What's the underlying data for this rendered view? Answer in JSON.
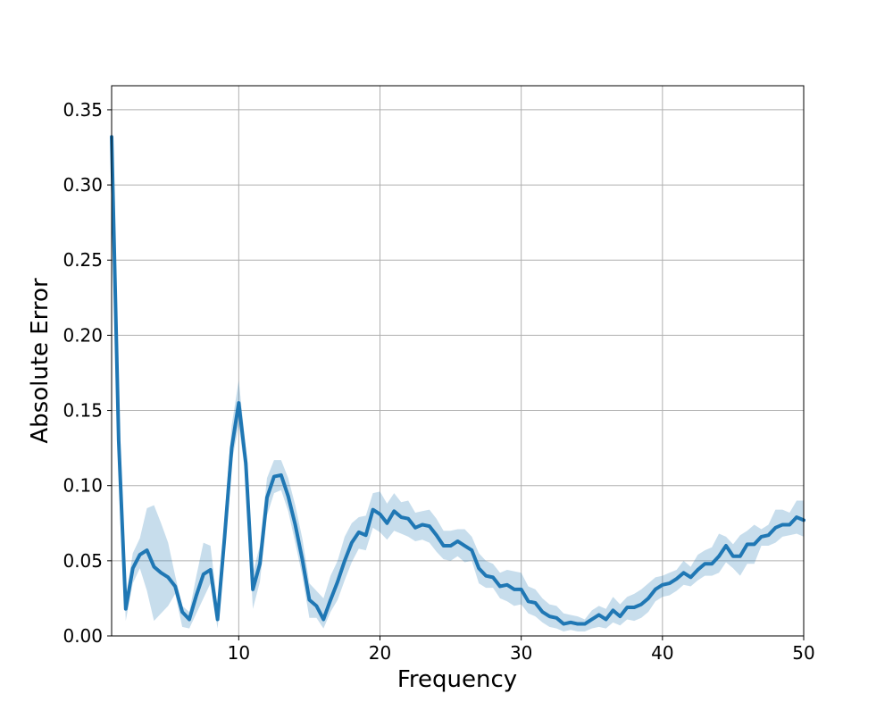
{
  "chart_data": {
    "type": "line",
    "xlabel": "Frequency",
    "ylabel": "Absolute Error",
    "xlim": [
      1,
      50
    ],
    "ylim": [
      0,
      0.366
    ],
    "xticks": [
      10,
      20,
      30,
      40,
      50
    ],
    "xtick_labels": [
      "10",
      "20",
      "30",
      "40",
      "50"
    ],
    "yticks": [
      0.0,
      0.05,
      0.1,
      0.15,
      0.2,
      0.25,
      0.3,
      0.35
    ],
    "ytick_labels": [
      "0.00",
      "0.05",
      "0.10",
      "0.15",
      "0.20",
      "0.25",
      "0.30",
      "0.35"
    ],
    "grid": true,
    "legend": false,
    "line_color": "#1f77b4",
    "band_color": "#1f77b4",
    "series": [
      {
        "x": [
          1.0,
          1.5,
          2.0,
          2.5,
          3.0,
          3.5,
          4.0,
          4.5,
          5.0,
          5.5,
          6.0,
          6.5,
          7.0,
          7.5,
          8.0,
          8.5,
          9.0,
          9.5,
          10.0,
          10.5,
          11.0,
          11.5,
          12.0,
          12.5,
          13.0,
          13.5,
          14.0,
          14.5,
          15.0,
          15.5,
          16.0,
          16.5,
          17.0,
          17.5,
          18.0,
          18.5,
          19.0,
          19.5,
          20.0,
          20.5,
          21.0,
          21.5,
          22.0,
          22.5,
          23.0,
          23.5,
          24.0,
          24.5,
          25.0,
          25.5,
          26.0,
          26.5,
          27.0,
          27.5,
          28.0,
          28.5,
          29.0,
          29.5,
          30.0,
          30.5,
          31.0,
          31.5,
          32.0,
          32.5,
          33.0,
          33.5,
          34.0,
          34.5,
          35.0,
          35.5,
          36.0,
          36.5,
          37.0,
          37.5,
          38.0,
          38.5,
          39.0,
          39.5,
          40.0,
          40.5,
          41.0,
          41.5,
          42.0,
          42.5,
          43.0,
          43.5,
          44.0,
          44.5,
          45.0,
          45.5,
          46.0,
          46.5,
          47.0,
          47.5,
          48.0,
          48.5,
          49.0,
          49.5,
          50.0
        ],
        "y": [
          0.332,
          0.13,
          0.018,
          0.045,
          0.054,
          0.057,
          0.046,
          0.042,
          0.039,
          0.033,
          0.016,
          0.011,
          0.027,
          0.041,
          0.044,
          0.011,
          0.066,
          0.125,
          0.155,
          0.115,
          0.031,
          0.048,
          0.092,
          0.106,
          0.107,
          0.093,
          0.074,
          0.051,
          0.024,
          0.02,
          0.011,
          0.024,
          0.036,
          0.05,
          0.062,
          0.069,
          0.067,
          0.084,
          0.081,
          0.075,
          0.083,
          0.079,
          0.078,
          0.072,
          0.074,
          0.073,
          0.067,
          0.06,
          0.06,
          0.063,
          0.06,
          0.057,
          0.045,
          0.04,
          0.039,
          0.033,
          0.034,
          0.031,
          0.031,
          0.023,
          0.022,
          0.016,
          0.013,
          0.012,
          0.008,
          0.009,
          0.008,
          0.008,
          0.011,
          0.014,
          0.011,
          0.017,
          0.013,
          0.019,
          0.019,
          0.021,
          0.025,
          0.031,
          0.034,
          0.035,
          0.038,
          0.042,
          0.039,
          0.044,
          0.048,
          0.048,
          0.053,
          0.06,
          0.053,
          0.053,
          0.061,
          0.061,
          0.066,
          0.067,
          0.072,
          0.074,
          0.074,
          0.079,
          0.077
        ],
        "upper": [
          0.335,
          0.135,
          0.025,
          0.055,
          0.065,
          0.085,
          0.087,
          0.075,
          0.062,
          0.04,
          0.02,
          0.016,
          0.04,
          0.062,
          0.06,
          0.02,
          0.08,
          0.14,
          0.17,
          0.125,
          0.042,
          0.06,
          0.105,
          0.117,
          0.117,
          0.105,
          0.087,
          0.065,
          0.035,
          0.03,
          0.025,
          0.04,
          0.05,
          0.066,
          0.075,
          0.079,
          0.08,
          0.095,
          0.096,
          0.088,
          0.095,
          0.089,
          0.09,
          0.082,
          0.083,
          0.084,
          0.078,
          0.07,
          0.07,
          0.071,
          0.071,
          0.066,
          0.055,
          0.05,
          0.048,
          0.042,
          0.044,
          0.043,
          0.042,
          0.033,
          0.031,
          0.025,
          0.021,
          0.02,
          0.015,
          0.014,
          0.013,
          0.011,
          0.017,
          0.02,
          0.018,
          0.026,
          0.021,
          0.026,
          0.028,
          0.031,
          0.035,
          0.039,
          0.04,
          0.042,
          0.044,
          0.05,
          0.046,
          0.054,
          0.057,
          0.059,
          0.068,
          0.066,
          0.061,
          0.067,
          0.07,
          0.074,
          0.071,
          0.074,
          0.084,
          0.084,
          0.082,
          0.09,
          0.09
        ],
        "lower": [
          0.33,
          0.125,
          0.01,
          0.035,
          0.045,
          0.03,
          0.01,
          0.015,
          0.02,
          0.028,
          0.006,
          0.005,
          0.015,
          0.025,
          0.035,
          0.005,
          0.055,
          0.115,
          0.14,
          0.105,
          0.018,
          0.036,
          0.08,
          0.095,
          0.097,
          0.083,
          0.062,
          0.04,
          0.012,
          0.012,
          0.005,
          0.016,
          0.024,
          0.037,
          0.049,
          0.058,
          0.057,
          0.072,
          0.069,
          0.064,
          0.07,
          0.068,
          0.066,
          0.063,
          0.064,
          0.062,
          0.056,
          0.051,
          0.05,
          0.053,
          0.049,
          0.05,
          0.035,
          0.032,
          0.032,
          0.025,
          0.023,
          0.02,
          0.021,
          0.015,
          0.013,
          0.009,
          0.006,
          0.005,
          0.003,
          0.004,
          0.003,
          0.003,
          0.005,
          0.006,
          0.005,
          0.009,
          0.007,
          0.011,
          0.01,
          0.012,
          0.016,
          0.023,
          0.026,
          0.027,
          0.03,
          0.034,
          0.033,
          0.037,
          0.04,
          0.04,
          0.042,
          0.049,
          0.045,
          0.04,
          0.048,
          0.048,
          0.06,
          0.06,
          0.062,
          0.066,
          0.067,
          0.068,
          0.066
        ]
      }
    ]
  }
}
